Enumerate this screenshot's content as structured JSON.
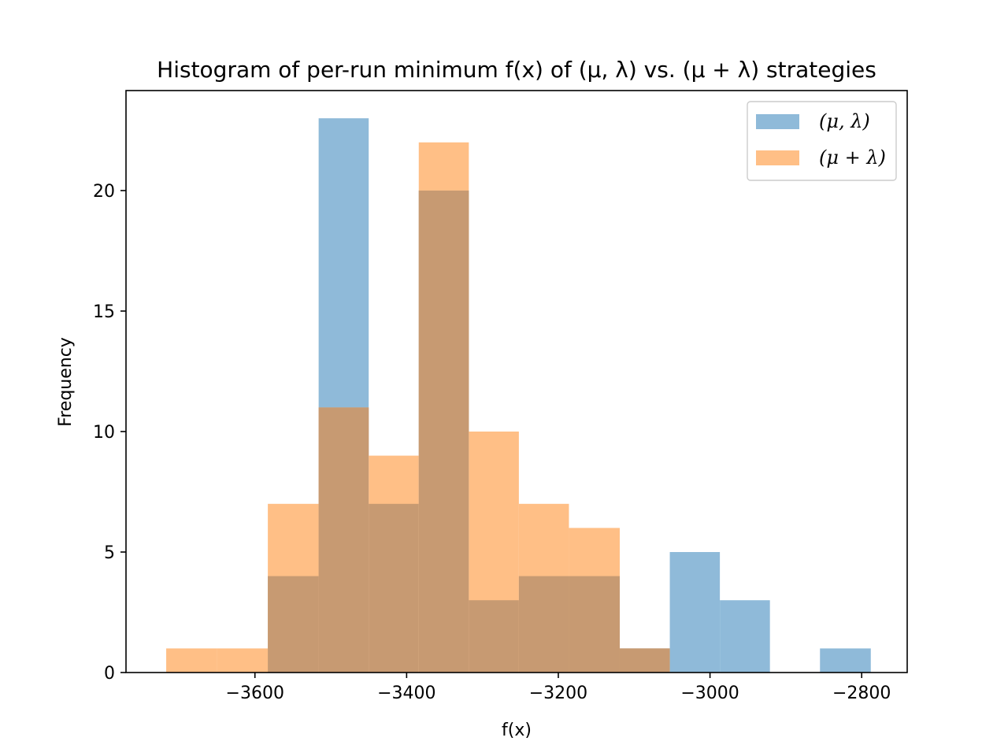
{
  "chart_data": {
    "type": "bar",
    "title": "Histogram of per-run minimum f(x) of (μ, λ) vs. (μ + λ) strategies",
    "xlabel": "f(x)",
    "ylabel": "Frequency",
    "xlim": [
      -3770,
      -2740
    ],
    "ylim": [
      0,
      24.15
    ],
    "x_ticks": [
      -3600,
      -3400,
      -3200,
      -3000,
      -2800
    ],
    "x_tick_labels": [
      "−3600",
      "−3400",
      "−3200",
      "−3000",
      "−2800"
    ],
    "y_ticks": [
      0,
      5,
      10,
      15,
      20
    ],
    "y_tick_labels": [
      "0",
      "5",
      "10",
      "15",
      "20"
    ],
    "legend_position": "top-right",
    "overlap_color": "#c79a72",
    "series": [
      {
        "name": "(μ, λ)",
        "color": "#8fbad9",
        "bins": [
          {
            "x0": -3583,
            "x1": -3516,
            "count": 4
          },
          {
            "x0": -3516,
            "x1": -3450,
            "count": 23
          },
          {
            "x0": -3450,
            "x1": -3384,
            "count": 7
          },
          {
            "x0": -3384,
            "x1": -3318,
            "count": 20
          },
          {
            "x0": -3318,
            "x1": -3252,
            "count": 3
          },
          {
            "x0": -3252,
            "x1": -3186,
            "count": 4
          },
          {
            "x0": -3186,
            "x1": -3119,
            "count": 4
          },
          {
            "x0": -3119,
            "x1": -3053,
            "count": 1
          },
          {
            "x0": -3053,
            "x1": -2987,
            "count": 5
          },
          {
            "x0": -2987,
            "x1": -2921,
            "count": 3
          },
          {
            "x0": -2921,
            "x1": -2855,
            "count": 0
          },
          {
            "x0": -2855,
            "x1": -2788,
            "count": 1
          }
        ]
      },
      {
        "name": "(μ + λ)",
        "color": "#ffbf86",
        "bins": [
          {
            "x0": -3717,
            "x1": -3650,
            "count": 1
          },
          {
            "x0": -3650,
            "x1": -3583,
            "count": 1
          },
          {
            "x0": -3583,
            "x1": -3516,
            "count": 7
          },
          {
            "x0": -3516,
            "x1": -3450,
            "count": 11
          },
          {
            "x0": -3450,
            "x1": -3384,
            "count": 9
          },
          {
            "x0": -3384,
            "x1": -3318,
            "count": 22
          },
          {
            "x0": -3318,
            "x1": -3252,
            "count": 10
          },
          {
            "x0": -3252,
            "x1": -3186,
            "count": 7
          },
          {
            "x0": -3186,
            "x1": -3119,
            "count": 6
          },
          {
            "x0": -3119,
            "x1": -3053,
            "count": 1
          }
        ]
      }
    ]
  }
}
